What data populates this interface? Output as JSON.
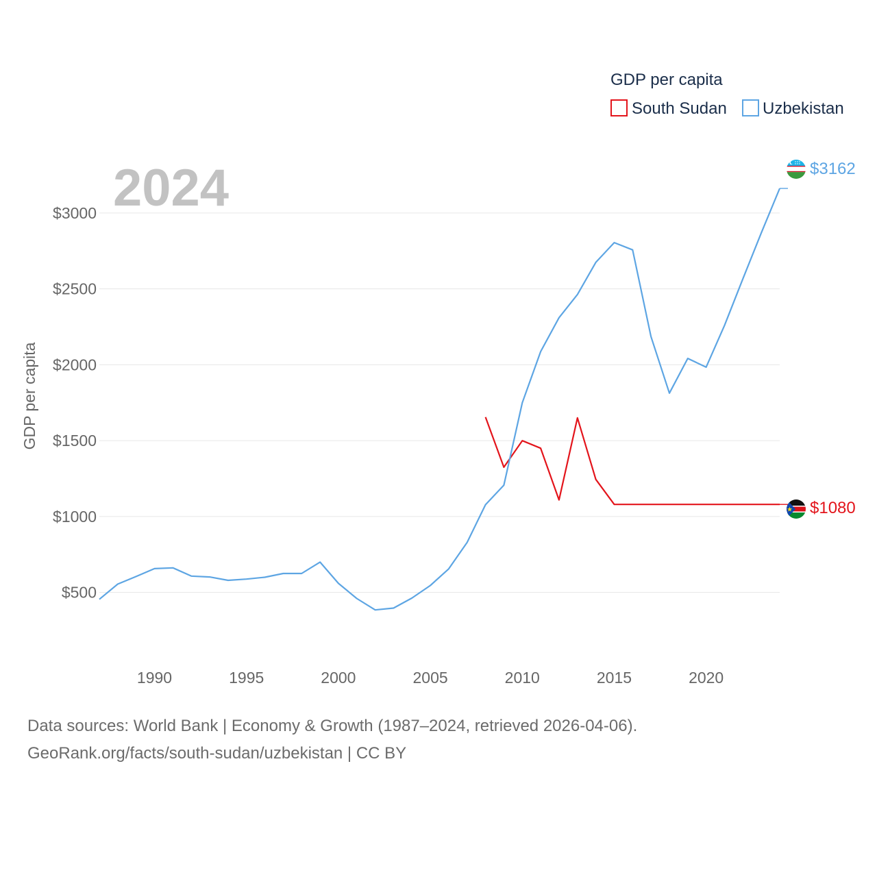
{
  "chart_data": {
    "type": "line",
    "legend_title": "GDP per capita",
    "ylabel": "GDP per capita",
    "year_label": "2024",
    "ylim": [
      160,
      3320
    ],
    "xlim": [
      1987,
      2024
    ],
    "y_ticks": [
      500,
      1000,
      1500,
      2000,
      2500,
      3000
    ],
    "y_tick_labels": [
      "$500",
      "$1000",
      "$1500",
      "$2000",
      "$2500",
      "$3000"
    ],
    "x_ticks": [
      1990,
      1995,
      2000,
      2005,
      2010,
      2015,
      2020
    ],
    "x_tick_labels": [
      "1990",
      "1995",
      "2000",
      "2005",
      "2010",
      "2015",
      "2020"
    ],
    "series": [
      {
        "name": "South Sudan",
        "color": "#e3141b",
        "end_label": "$1080",
        "x": [
          2008,
          2009,
          2010,
          2011,
          2012,
          2013,
          2014,
          2015,
          2016,
          2017,
          2018,
          2019,
          2020,
          2021,
          2022,
          2023,
          2024
        ],
        "values": [
          1655,
          1325,
          1500,
          1450,
          1110,
          1650,
          1245,
          1080,
          1080,
          1080,
          1080,
          1080,
          1080,
          1080,
          1080,
          1080,
          1080
        ]
      },
      {
        "name": "Uzbekistan",
        "color": "#5da5e3",
        "end_label": "$3162",
        "x": [
          1987,
          1988,
          1989,
          1990,
          1991,
          1992,
          1993,
          1994,
          1995,
          1996,
          1997,
          1998,
          1999,
          2000,
          2001,
          2002,
          2003,
          2004,
          2005,
          2006,
          2007,
          2008,
          2009,
          2010,
          2011,
          2012,
          2013,
          2014,
          2015,
          2016,
          2017,
          2018,
          2019,
          2020,
          2021,
          2022,
          2023,
          2024
        ],
        "values": [
          455,
          555,
          605,
          657,
          662,
          608,
          602,
          580,
          588,
          600,
          625,
          625,
          700,
          560,
          460,
          385,
          397,
          463,
          546,
          655,
          830,
          1078,
          1207,
          1750,
          2087,
          2310,
          2463,
          2675,
          2805,
          2757,
          2186,
          1813,
          2042,
          1984,
          2260,
          2567,
          2870,
          3162
        ]
      }
    ]
  },
  "footer": {
    "line1": "Data sources: World Bank | Economy & Growth (1987–2024, retrieved 2026-04-06).",
    "line2": "GeoRank.org/facts/south-sudan/uzbekistan | CC BY"
  },
  "flags": {
    "south_sudan": "south-sudan-flag-icon",
    "uzbekistan": "uzbekistan-flag-icon"
  }
}
